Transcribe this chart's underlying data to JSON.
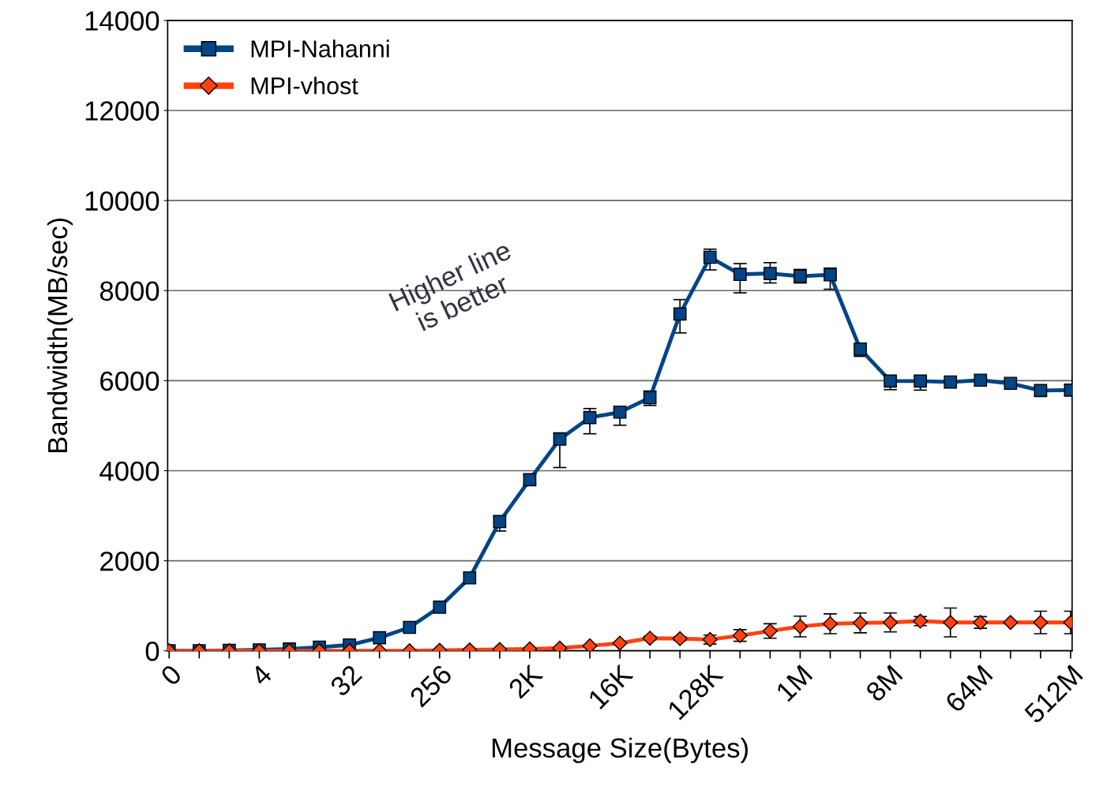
{
  "chart_data": {
    "type": "line",
    "xlabel": "Message Size(Bytes)",
    "ylabel": "Bandwidth(MB/sec)",
    "categories": [
      "0",
      null,
      null,
      "4",
      null,
      null,
      "32",
      null,
      null,
      "256",
      null,
      null,
      "2K",
      null,
      null,
      "16K",
      null,
      null,
      "128K",
      null,
      null,
      "1M",
      null,
      null,
      "8M",
      null,
      null,
      "64M",
      null,
      null,
      "512M"
    ],
    "series": [
      {
        "name": "MPI-Nahanni",
        "color": "#004586",
        "marker": "square",
        "values": [
          0,
          0,
          10,
          20,
          40,
          80,
          130,
          290,
          520,
          970,
          1620,
          2870,
          3800,
          4700,
          5180,
          5300,
          5620,
          7480,
          8740,
          8360,
          8380,
          8320,
          8350,
          6700,
          5990,
          5990,
          5970,
          6010,
          5940,
          5780,
          5790
        ],
        "errors": [
          null,
          null,
          null,
          null,
          null,
          null,
          null,
          null,
          null,
          null,
          null,
          [
            2660,
            2980
          ],
          [
            3700,
            3910
          ],
          [
            4070,
            4840
          ],
          [
            4820,
            5380
          ],
          [
            5010,
            5380
          ],
          [
            5450,
            5770
          ],
          [
            7060,
            7800
          ],
          [
            8460,
            8920
          ],
          [
            7950,
            8600
          ],
          [
            8170,
            8620
          ],
          [
            8170,
            8470
          ],
          [
            8030,
            8500
          ],
          [
            6540,
            6800
          ],
          [
            5800,
            6100
          ],
          [
            5790,
            6100
          ],
          null,
          null,
          null,
          [
            5670,
            5870
          ],
          [
            5680,
            5900
          ]
        ]
      },
      {
        "name": "MPI-vhost",
        "color": "#ff420e",
        "marker": "diamond",
        "values": [
          0,
          0,
          0,
          0,
          0,
          0,
          0,
          0,
          0,
          10,
          20,
          30,
          40,
          60,
          110,
          170,
          280,
          270,
          250,
          340,
          440,
          540,
          600,
          620,
          630,
          660,
          630,
          630,
          630,
          630,
          630
        ],
        "errors": [
          null,
          null,
          null,
          null,
          null,
          null,
          null,
          null,
          null,
          null,
          null,
          null,
          null,
          null,
          null,
          null,
          40,
          40,
          100,
          130,
          160,
          230,
          220,
          220,
          210,
          100,
          320,
          130,
          null,
          250,
          250
        ]
      }
    ],
    "ylim": [
      0,
      14000
    ],
    "yticks": [
      0,
      2000,
      4000,
      6000,
      8000,
      10000,
      12000,
      14000
    ],
    "grid": "y",
    "legend": "top left",
    "line_style": "solid",
    "annotations": [
      "Higher line\nis better"
    ]
  }
}
